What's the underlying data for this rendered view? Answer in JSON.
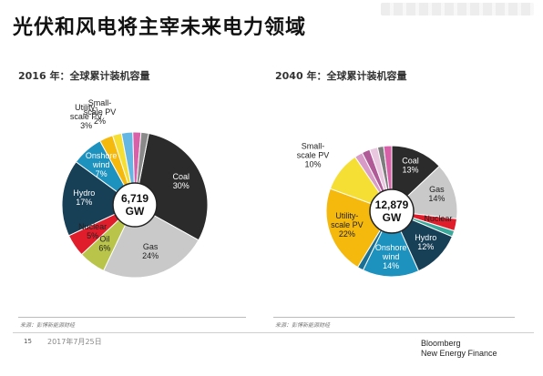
{
  "title": "光伏和风电将主宰未来电力领域",
  "chart_data": [
    {
      "type": "pie",
      "title": "2016 年：全球累计装机容量",
      "center_label": [
        "6,719",
        "GW"
      ],
      "slices": [
        {
          "name": "Coal",
          "value": 30,
          "label": [
            "Coal",
            "30%"
          ],
          "color": "#2b2b2b",
          "text_color": "#ffffff",
          "label_pos": "inside"
        },
        {
          "name": "Gas",
          "value": 24,
          "label": [
            "Gas",
            "24%"
          ],
          "color": "#c9c9c9",
          "text_color": "#222222",
          "label_pos": "inside"
        },
        {
          "name": "Oil",
          "value": 6,
          "label": [
            "Oil",
            "6%"
          ],
          "color": "#b9c44a",
          "text_color": "#222222",
          "label_pos": "inside"
        },
        {
          "name": "Nuclear",
          "value": 5,
          "label": [
            "Nuclear",
            "5%"
          ],
          "color": "#e01d2a",
          "text_color": "#222222",
          "label_pos": "inside"
        },
        {
          "name": "Hydro",
          "value": 17,
          "label": [
            "Hydro",
            "17%"
          ],
          "color": "#173f56",
          "text_color": "#ffffff",
          "label_pos": "inside"
        },
        {
          "name": "Onshore wind",
          "value": 7,
          "label": [
            "Onshore",
            "wind",
            "7%"
          ],
          "color": "#1d92bf",
          "text_color": "#ffffff",
          "label_pos": "inside"
        },
        {
          "name": "Utility-scale PV",
          "value": 3,
          "label": [
            "Utility-",
            "scale PV",
            "3%"
          ],
          "color": "#f5b80d",
          "text_color": "#222222",
          "label_pos": "outside"
        },
        {
          "name": "Small-scale PV",
          "value": 2,
          "label": [
            "Small-",
            "scale PV",
            "2%"
          ],
          "color": "#f6df34",
          "text_color": "#222222",
          "label_pos": "outside"
        },
        {
          "name": "Other 1",
          "value": 2.5,
          "label": [],
          "color": "#65b7e3"
        },
        {
          "name": "Other 2",
          "value": 1.8,
          "label": [],
          "color": "#d85fa8"
        },
        {
          "name": "Other 3",
          "value": 1.7,
          "label": [],
          "color": "#8a8a8a"
        }
      ]
    },
    {
      "type": "pie",
      "title": "2040 年：全球累计装机容量",
      "center_label": [
        "12,879",
        "GW"
      ],
      "slices": [
        {
          "name": "Coal",
          "value": 13,
          "label": [
            "Coal",
            "13%"
          ],
          "color": "#2b2b2b",
          "text_color": "#ffffff",
          "label_pos": "inside"
        },
        {
          "name": "Gas",
          "value": 14,
          "label": [
            "Gas",
            "14%"
          ],
          "color": "#c9c9c9",
          "text_color": "#222222",
          "label_pos": "inside"
        },
        {
          "name": "Nuclear",
          "value": 3,
          "label": [
            "Nuclear"
          ],
          "color": "#e01d2a",
          "text_color": "#222222",
          "label_pos": "inside"
        },
        {
          "name": "Other teal",
          "value": 1.5,
          "label": [],
          "color": "#3aa89a"
        },
        {
          "name": "Hydro",
          "value": 12,
          "label": [
            "Hydro",
            "12%"
          ],
          "color": "#173f56",
          "text_color": "#ffffff",
          "label_pos": "inside"
        },
        {
          "name": "Onshore wind",
          "value": 14,
          "label": [
            "Onshore",
            "wind",
            "14%"
          ],
          "color": "#1d92bf",
          "text_color": "#ffffff",
          "label_pos": "inside"
        },
        {
          "name": "Offshore",
          "value": 1.5,
          "label": [],
          "color": "#1a6f94"
        },
        {
          "name": "Utility-scale PV",
          "value": 22,
          "label": [
            "Utility-",
            "scale PV",
            "22%"
          ],
          "color": "#f5b80d",
          "text_color": "#222222",
          "label_pos": "inside"
        },
        {
          "name": "Small-scale PV",
          "value": 10,
          "label": [
            "Small-",
            "scale PV",
            "10%"
          ],
          "color": "#f6df34",
          "text_color": "#222222",
          "label_pos": "outside"
        },
        {
          "name": "Storage a",
          "value": 2,
          "label": [],
          "color": "#d89ac6"
        },
        {
          "name": "Storage b",
          "value": 2,
          "label": [],
          "color": "#b05b98"
        },
        {
          "name": "Storage c",
          "value": 2,
          "label": [],
          "color": "#e9c7de"
        },
        {
          "name": "Other grey",
          "value": 1.5,
          "label": [],
          "color": "#7d7d7d"
        },
        {
          "name": "Other pink",
          "value": 2,
          "label": [],
          "color": "#d85fa8"
        }
      ]
    }
  ],
  "footer": {
    "source_1": "来源：彭博新能源财经",
    "source_2": "来源：彭博新能源财经",
    "page_number": "15",
    "date": "2017年7月25日",
    "brand_line1": "Bloomberg",
    "brand_line2": "New Energy Finance"
  }
}
